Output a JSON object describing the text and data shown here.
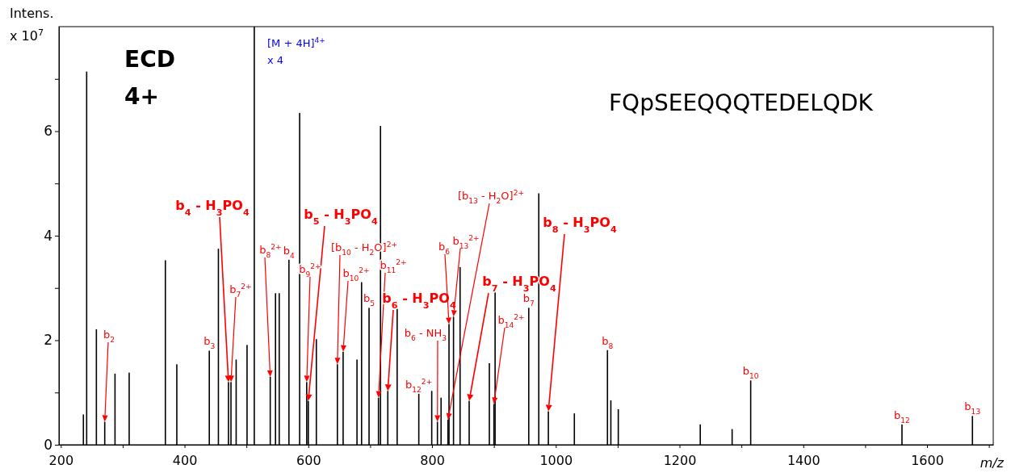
{
  "chart_data": {
    "type": "bar",
    "title": "ECD 4+",
    "subtitle": "FQpSEEQQQTEDELQDK",
    "xlabel": "m/z",
    "ylabel": "Intens.\nx 10$^{7}$",
    "x": [
      236.5,
      241.8,
      257.5,
      271,
      287.6,
      310.5,
      369,
      387.5,
      440,
      454.7,
      471,
      475,
      483.4,
      501,
      512.7,
      538.5,
      547,
      553,
      568.7,
      586,
      597.4,
      600,
      613,
      647,
      656.3,
      678.7,
      686.1,
      698.2,
      713.4,
      716.7,
      728.5,
      743.6,
      778.6,
      799.5,
      808.7,
      814.6,
      825.7,
      827.4,
      834.7,
      845.3,
      860,
      892.6,
      900,
      901.9,
      956.3,
      972.5,
      988,
      1030,
      1083.5,
      1089,
      1101,
      1233.5,
      1285,
      1315,
      1559.5,
      1673.4
    ],
    "series": [
      {
        "color": "#000000",
        "values": [
          0.58,
          7.14,
          2.21,
          0.44,
          1.36,
          1.38,
          3.53,
          1.54,
          1.8,
          3.75,
          1.2,
          1.2,
          1.63,
          1.91,
          8,
          1.3,
          2.9,
          2.9,
          3.54,
          6.35,
          1.2,
          0.84,
          2.02,
          1.54,
          1.78,
          1.63,
          3.11,
          2.62,
          0.9,
          6.1,
          1.03,
          2.6,
          0.98,
          1.03,
          0.44,
          0.9,
          0.48,
          2.31,
          2.45,
          3.4,
          0.84,
          1.56,
          0.78,
          2.96,
          2.62,
          4.81,
          0.64,
          0.6,
          1.81,
          0.85,
          0.68,
          0.39,
          0.3,
          1.23,
          0.39,
          0.55
        ]
      }
    ],
    "xlim": [
      197,
      1707
    ],
    "xticks": [
      200,
      {
        "value": 300,
        "label": null
      },
      400,
      {
        "value": 500,
        "label": null
      },
      600,
      {
        "value": 700,
        "label": null
      },
      800,
      {
        "value": 900,
        "label": null
      },
      1000,
      {
        "value": 1100,
        "label": null
      },
      1200,
      {
        "value": 1300,
        "label": null
      },
      1400,
      {
        "value": 1500,
        "label": null
      },
      1600,
      {
        "value": 1700,
        "label": null
      }
    ],
    "ylim": [
      0,
      8
    ],
    "yticks": [
      0,
      {
        "value": 1,
        "label": null
      },
      2,
      {
        "value": 3,
        "label": null
      },
      4,
      {
        "value": 5,
        "label": null
      },
      6,
      {
        "value": 7,
        "label": null
      }
    ],
    "grid": false,
    "annotations": [
      {
        "text": "b$_{2}$",
        "x": 271,
        "y": 0.44
      },
      {
        "text": "b$_{3}$",
        "x": 440,
        "y": 1.8
      },
      {
        "text": "b$_{4}$ - H$_{3}$PO$_{4}$",
        "x": 471,
        "y": 1.2
      },
      {
        "text": "b$_{7}$$^{2+}$",
        "x": 475,
        "y": 1.2
      },
      {
        "text": "b$_{8}$$^{2+}$",
        "x": 538.5,
        "y": 1.3
      },
      {
        "text": "b$_{4}$",
        "x": 568.7,
        "y": 3.54
      },
      {
        "text": "b$_{5}$ - H$_{3}$PO$_{4}$",
        "x": 600,
        "y": 0.84
      },
      {
        "text": "b$_{9}$$^{2+}$",
        "x": 597.4,
        "y": 1.2
      },
      {
        "text": "[b$_{10}$ - H$_{2}$O]$^{2+}$",
        "x": 647,
        "y": 1.54
      },
      {
        "text": "b$_{10}$$^{2+}$",
        "x": 656.3,
        "y": 1.78
      },
      {
        "text": "b$_{5}$",
        "x": 698.2,
        "y": 2.62
      },
      {
        "text": "b$_{11}$$^{2+}$",
        "x": 713.4,
        "y": 0.9
      },
      {
        "text": "b$_{6}$ - H$_{3}$PO$_{4}$",
        "x": 728.5,
        "y": 1.03
      },
      {
        "text": "b$_{6}$ - NH$_{3}$",
        "x": 808.7,
        "y": 0.44
      },
      {
        "text": "b$_{12}$$^{2+}$",
        "x": 778.6,
        "y": 0.98
      },
      {
        "text": "[b$_{13}$ - H$_{2}$O]$^{2+}$",
        "x": 825.7,
        "y": 0.48
      },
      {
        "text": "b$_{6}$",
        "x": 827.4,
        "y": 2.31
      },
      {
        "text": "b$_{13}$$^{2+}$",
        "x": 834.7,
        "y": 2.45
      },
      {
        "text": "b$_{7}$ - H$_{3}$PO$_{4}$",
        "x": 860,
        "y": 0.84
      },
      {
        "text": "b$_{7}$",
        "x": 956.3,
        "y": 2.62
      },
      {
        "text": "b$_{14}$$^{2+}$",
        "x": 900,
        "y": 0.78
      },
      {
        "text": "b$_{8}$ - H$_{3}$PO$_{4}$",
        "x": 988,
        "y": 0.64
      },
      {
        "text": "b$_{8}$",
        "x": 1083.5,
        "y": 1.81
      },
      {
        "text": "b$_{10}$",
        "x": 1315,
        "y": 1.23
      },
      {
        "text": "b$_{12}$",
        "x": 1559.5,
        "y": 0.39
      },
      {
        "text": "b$_{13}$",
        "x": 1673.4,
        "y": 0.55
      },
      "[M + 4H]$^{4+}$\nx 4"
    ]
  }
}
